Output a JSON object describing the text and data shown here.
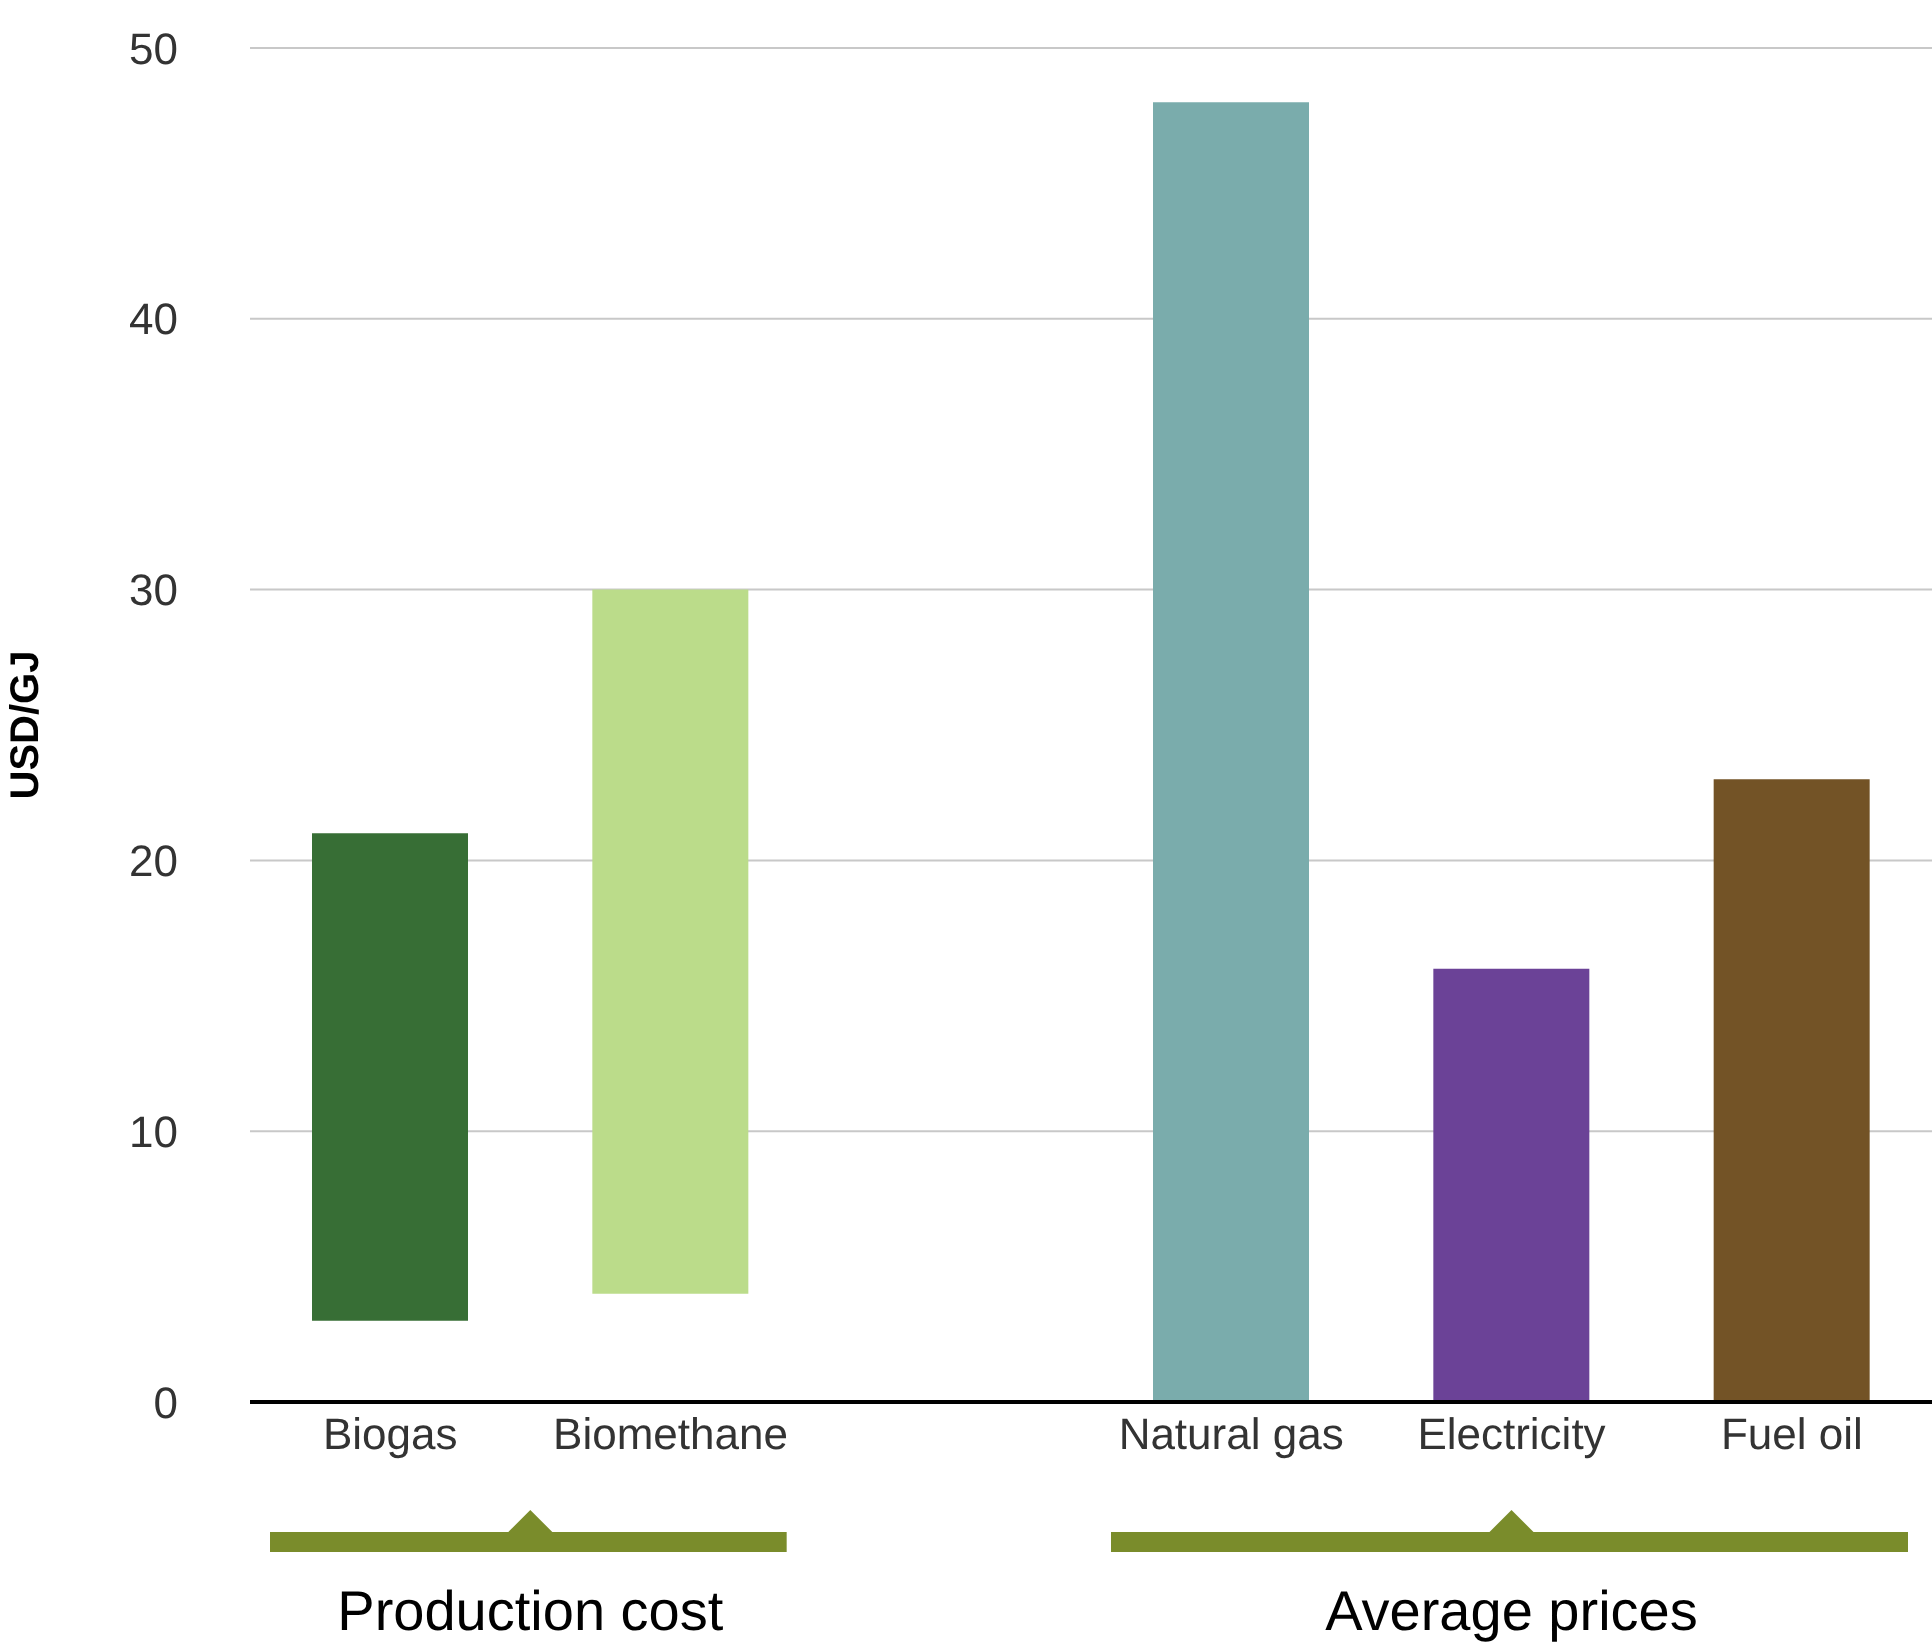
{
  "chart_data": {
    "type": "bar",
    "ylabel": "USD/GJ",
    "categories": [
      "Biogas",
      "Biomethane",
      null,
      "Natural gas",
      "Electricity",
      "Fuel oil"
    ],
    "values": [
      18,
      26,
      null,
      48,
      16,
      23
    ],
    "base": [
      3,
      4,
      null,
      0,
      0,
      0
    ],
    "colors": [
      "#376e35",
      "#bbdc8a",
      "#ffffff",
      "#7aacac",
      "#6b4297",
      "#735326"
    ],
    "ylim": [
      0,
      50
    ],
    "yticks": [
      0,
      10,
      20,
      30,
      40,
      50
    ],
    "grid": "y",
    "annotations": [
      "Production cost",
      "Average prices"
    ]
  }
}
